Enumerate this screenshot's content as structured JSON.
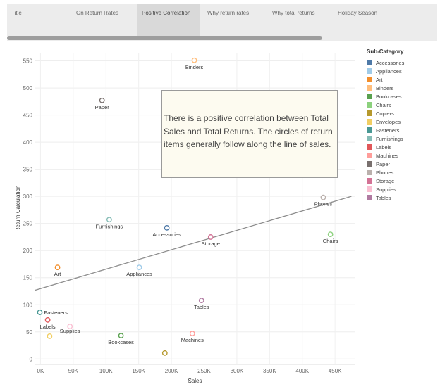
{
  "tabs": [
    {
      "label": "Title",
      "active": false
    },
    {
      "label": "On Return Rates",
      "active": false
    },
    {
      "label": "Positive Correlation",
      "active": true
    },
    {
      "label": "Why return rates",
      "active": false
    },
    {
      "label": "Why total returns",
      "active": false
    },
    {
      "label": "Holiday Season",
      "active": false
    }
  ],
  "annotation": {
    "text": "There is a positive correlation between Total Sales and Total Returns. The circles of return items generally follow along the line of sales."
  },
  "legend": {
    "title": "Sub-Category",
    "items": [
      {
        "label": "Accessories",
        "color": "#4e79a7"
      },
      {
        "label": "Appliances",
        "color": "#a0cbe8"
      },
      {
        "label": "Art",
        "color": "#f28e2b"
      },
      {
        "label": "Binders",
        "color": "#ffbe7d"
      },
      {
        "label": "Bookcases",
        "color": "#59a14f"
      },
      {
        "label": "Chairs",
        "color": "#8cd17d"
      },
      {
        "label": "Copiers",
        "color": "#b6992d"
      },
      {
        "label": "Envelopes",
        "color": "#f1ce63"
      },
      {
        "label": "Fasteners",
        "color": "#499894"
      },
      {
        "label": "Furnishings",
        "color": "#86bcb6"
      },
      {
        "label": "Labels",
        "color": "#e15759"
      },
      {
        "label": "Machines",
        "color": "#ff9d9a"
      },
      {
        "label": "Paper",
        "color": "#79706e"
      },
      {
        "label": "Phones",
        "color": "#bab0ac"
      },
      {
        "label": "Storage",
        "color": "#d37295"
      },
      {
        "label": "Supplies",
        "color": "#fabfd2"
      },
      {
        "label": "Tables",
        "color": "#b07aa1"
      }
    ]
  },
  "chart_data": {
    "type": "scatter",
    "xlabel": "Sales",
    "ylabel": "Return Calculation",
    "xlim": [
      -8000,
      480000
    ],
    "ylim": [
      -10,
      565
    ],
    "x_ticks": [
      0,
      50000,
      100000,
      150000,
      200000,
      250000,
      300000,
      350000,
      400000,
      450000
    ],
    "x_tick_labels": [
      "0K",
      "50K",
      "100K",
      "150K",
      "200K",
      "250K",
      "300K",
      "350K",
      "400K",
      "450K"
    ],
    "y_ticks": [
      0,
      50,
      100,
      150,
      200,
      250,
      300,
      350,
      400,
      450,
      500,
      550
    ],
    "y_tick_labels": [
      "0",
      "50",
      "100",
      "150",
      "200",
      "250",
      "300",
      "350",
      "400",
      "450",
      "500",
      "550"
    ],
    "grid": true,
    "legend_position": "right",
    "trend_line": {
      "x": [
        -8000,
        475000
      ],
      "y": [
        127,
        300
      ]
    },
    "points": [
      {
        "name": "Binders",
        "x": 235000,
        "y": 551,
        "color": "#ffbe7d",
        "label": "Binders"
      },
      {
        "name": "Paper",
        "x": 94000,
        "y": 477,
        "color": "#79706e",
        "label": "Paper"
      },
      {
        "name": "Phones",
        "x": 432000,
        "y": 298,
        "color": "#bab0ac",
        "label": "Phones"
      },
      {
        "name": "Furnishings",
        "x": 105000,
        "y": 257,
        "color": "#86bcb6",
        "label": "Furnishings"
      },
      {
        "name": "Accessories",
        "x": 193000,
        "y": 242,
        "color": "#4e79a7",
        "label": "Accessories"
      },
      {
        "name": "Storage",
        "x": 260000,
        "y": 225,
        "color": "#d37295",
        "label": "Storage"
      },
      {
        "name": "Chairs",
        "x": 443000,
        "y": 230,
        "color": "#8cd17d",
        "label": "Chairs"
      },
      {
        "name": "Art",
        "x": 26000,
        "y": 169,
        "color": "#f28e2b",
        "label": "Art"
      },
      {
        "name": "Appliances",
        "x": 151000,
        "y": 169,
        "color": "#a0cbe8",
        "label": "Appliances"
      },
      {
        "name": "Tables",
        "x": 246000,
        "y": 108,
        "color": "#b07aa1",
        "label": "Tables"
      },
      {
        "name": "Fasteners",
        "x": -1000,
        "y": 86,
        "color": "#499894",
        "label": "Fasteners"
      },
      {
        "name": "Labels",
        "x": 11000,
        "y": 72,
        "color": "#e15759",
        "label": "Labels"
      },
      {
        "name": "Supplies",
        "x": 45000,
        "y": 60,
        "color": "#fabfd2",
        "label": "Supplies"
      },
      {
        "name": "Envelopes",
        "x": 14000,
        "y": 42,
        "color": "#f1ce63",
        "label": ""
      },
      {
        "name": "Bookcases",
        "x": 123000,
        "y": 43,
        "color": "#59a14f",
        "label": "Bookcases"
      },
      {
        "name": "Machines",
        "x": 232000,
        "y": 47,
        "color": "#ff9d9a",
        "label": "Machines"
      },
      {
        "name": "Copiers",
        "x": 190000,
        "y": 11,
        "color": "#b6992d",
        "label": ""
      }
    ]
  }
}
